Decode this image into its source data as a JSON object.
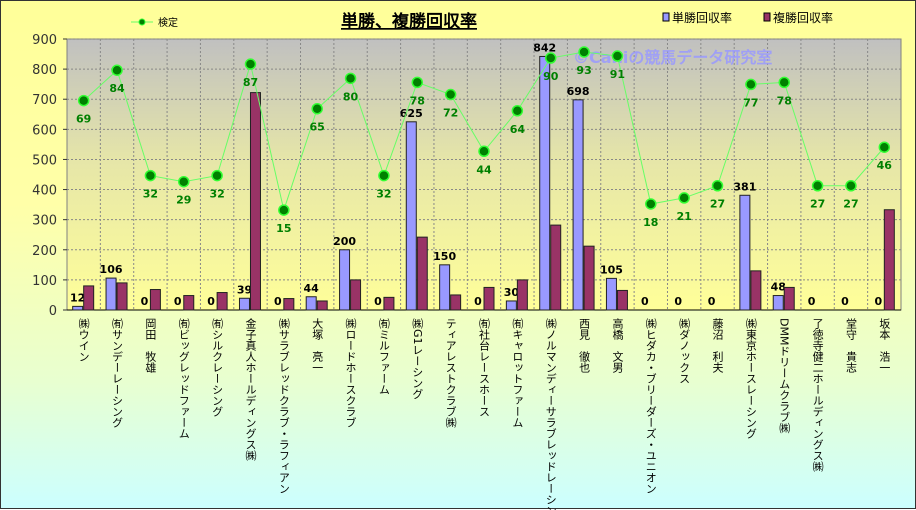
{
  "chart_data": {
    "type": "bar",
    "title": "単勝、複勝回収率",
    "watermark": "©Caniの競馬データ研究室",
    "ylim": [
      0,
      900
    ],
    "yticks": [
      0,
      100,
      200,
      300,
      400,
      500,
      600,
      700,
      800,
      900
    ],
    "y2lim": [
      -34.3,
      99.4
    ],
    "grid": true,
    "legend_placement": "top",
    "categories": [
      "㈱ウイン",
      "㈲サンデーレーシング",
      "岡田　牧雄",
      "㈲ビッグレッドファーム",
      "㈲シルクレーシング",
      "金子真人ホールディングス㈱",
      "㈱サラブレッドクラブ・ラフィアン",
      "大塚　亮一",
      "㈱ロードホースクラブ",
      "㈲ミルファーム",
      "㈱G1レーシング",
      "ティアレストクラブ㈱",
      "㈲社台レースホース",
      "㈲キャロットファーム",
      "㈱ノルマンディーサラブレッドレーシング",
      "西見　徹也",
      "高橋　文男",
      "㈱ヒダカ・ブリーダーズ・ユニオン",
      "㈱ダノックス",
      "藤沼　利夫",
      "㈱東京ホースレーシング",
      "DMMドリームクラブ㈱",
      "了徳寺健二ホールディングス㈱",
      "堂守　貴志",
      "坂本　浩一"
    ],
    "series": [
      {
        "name": "単勝回収率",
        "type": "bar",
        "color": "#9999ff",
        "labeled": true,
        "values": [
          12,
          106,
          0,
          0,
          0,
          39,
          0,
          44,
          200,
          0,
          625,
          150,
          0,
          30,
          842,
          698,
          105,
          0,
          0,
          0,
          381,
          48,
          0,
          0,
          0
        ]
      },
      {
        "name": "複勝回収率",
        "type": "bar",
        "color": "#993366",
        "labeled": false,
        "values": [
          80,
          90,
          68,
          48,
          58,
          722,
          38,
          30,
          100,
          42,
          242,
          50,
          75,
          100,
          282,
          212,
          65,
          0,
          0,
          0,
          130,
          75,
          0,
          0,
          333
        ]
      },
      {
        "name": "検定",
        "type": "line",
        "axis": "secondary",
        "color": "#66ff66",
        "marker_color": "#008000",
        "values": [
          69,
          84,
          32,
          29,
          32,
          87,
          15,
          65,
          80,
          32,
          78,
          72,
          44,
          64,
          90,
          93,
          91,
          18,
          21,
          27,
          77,
          78,
          27,
          27,
          46
        ]
      }
    ]
  }
}
